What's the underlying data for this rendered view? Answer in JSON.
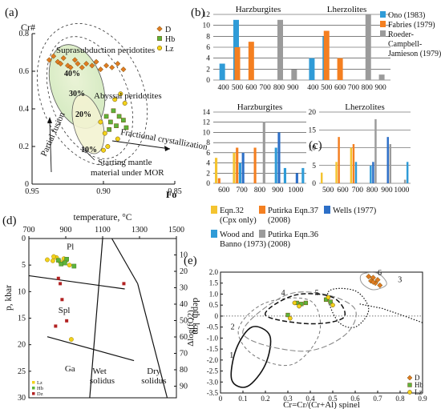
{
  "chart_data": [
    {
      "panel": "(a)",
      "type": "scatter",
      "ylabel": "Cr#",
      "xlabel": "Fo",
      "xlim": [
        0.95,
        0.85
      ],
      "ylim": [
        0.0,
        0.8
      ],
      "xticks": [
        "0.95",
        "0.90",
        "0.85"
      ],
      "yticks": [
        "0",
        "0.2",
        "0.4",
        "0.6",
        "0.8"
      ],
      "annotations": {
        "supra": "Suprasubduction peridotites",
        "abyssal": "Abyssal peridotites",
        "fractional": "Fractional crystallization",
        "partial": "Partial fusion",
        "starting1": "Starting mantle",
        "starting2": "material under MOR",
        "p40": "40%",
        "p30": "30%",
        "p20": "20%",
        "p10": "10%"
      },
      "legend": [
        {
          "label": "D",
          "color": "#e07b22",
          "marker": "diamond"
        },
        {
          "label": "Hb",
          "color": "#5db33b",
          "marker": "square"
        },
        {
          "label": "Lz",
          "color": "#f2d21a",
          "marker": "circle"
        }
      ],
      "series": [
        {
          "name": "D",
          "points": [
            [
              0.938,
              0.66
            ],
            [
              0.935,
              0.68
            ],
            [
              0.932,
              0.65
            ],
            [
              0.93,
              0.64
            ],
            [
              0.928,
              0.67
            ],
            [
              0.925,
              0.63
            ],
            [
              0.923,
              0.62
            ],
            [
              0.92,
              0.66
            ],
            [
              0.918,
              0.64
            ],
            [
              0.915,
              0.62
            ],
            [
              0.912,
              0.64
            ],
            [
              0.908,
              0.63
            ],
            [
              0.905,
              0.65
            ],
            [
              0.902,
              0.61
            ],
            [
              0.898,
              0.63
            ],
            [
              0.894,
              0.62
            ],
            [
              0.89,
              0.64
            ],
            [
              0.886,
              0.61
            ]
          ]
        },
        {
          "name": "Hb",
          "points": [
            [
              0.898,
              0.36
            ],
            [
              0.895,
              0.33
            ],
            [
              0.893,
              0.39
            ],
            [
              0.891,
              0.31
            ],
            [
              0.889,
              0.36
            ],
            [
              0.896,
              0.29
            ],
            [
              0.886,
              0.34
            ],
            [
              0.884,
              0.3
            ]
          ]
        },
        {
          "name": "Lz",
          "points": [
            [
              0.902,
              0.33
            ],
            [
              0.899,
              0.27
            ],
            [
              0.892,
              0.45
            ],
            [
              0.888,
              0.48
            ],
            [
              0.885,
              0.43
            ],
            [
              0.897,
              0.2
            ],
            [
              0.9,
              0.18
            ],
            [
              0.89,
              0.24
            ]
          ]
        }
      ]
    },
    {
      "panel": "(b)",
      "type": "bar",
      "subplots": [
        {
          "title": "Harzburgites",
          "categories": [
            "400",
            "500",
            "600",
            "700",
            "800",
            "900"
          ],
          "ylim": [
            0,
            12
          ],
          "yticks": [
            "0",
            "2",
            "4",
            "6",
            "8",
            "10",
            "12"
          ],
          "series": [
            {
              "name": "Ono (1983)",
              "color": "#2f9bd7",
              "values": [
                3,
                11,
                0,
                0,
                0,
                0
              ]
            },
            {
              "name": "Fabries (1979)",
              "color": "#f47f20",
              "values": [
                0,
                6,
                7,
                0,
                0,
                0
              ]
            },
            {
              "name": "Roeder-Campbell-Jamieson (1979)",
              "color": "#9b9b9b",
              "values": [
                0,
                0,
                0,
                0,
                11,
                2
              ]
            }
          ]
        },
        {
          "title": "Lherzolites",
          "categories": [
            "400",
            "500",
            "600",
            "700",
            "800",
            "900"
          ],
          "ylim": [
            0,
            12
          ],
          "yticks": [],
          "series": [
            {
              "name": "Ono (1983)",
              "color": "#2f9bd7",
              "values": [
                4,
                8,
                0,
                0,
                0,
                0
              ]
            },
            {
              "name": "Fabries (1979)",
              "color": "#f47f20",
              "values": [
                0,
                9,
                4,
                0,
                0,
                0
              ]
            },
            {
              "name": "Roeder-Campbell-Jamieson (1979)",
              "color": "#9b9b9b",
              "values": [
                0,
                0,
                0,
                0,
                12,
                1
              ]
            }
          ]
        }
      ],
      "legend": [
        {
          "text": "Ono (1983)",
          "color": "#2f9bd7"
        },
        {
          "text": "Fabries (1979)",
          "color": "#f47f20"
        },
        {
          "text": "Roeder-",
          "color": "#9b9b9b"
        },
        {
          "text": "Campbell-",
          "color": ""
        },
        {
          "text": "Jamieson (1979)",
          "color": ""
        }
      ]
    },
    {
      "panel": "(c)",
      "type": "bar",
      "subplots": [
        {
          "title": "Harzburgites",
          "categories": [
            "600",
            "700",
            "800",
            "900",
            "1000"
          ],
          "ylim": [
            0,
            14
          ],
          "yticks": [
            "0",
            "2",
            "4",
            "6",
            "8",
            "10",
            "12",
            "14"
          ],
          "groups": [
            [
              5,
              1,
              0,
              0,
              0,
              0
            ],
            [
              6,
              7,
              4,
              6,
              0,
              0
            ],
            [
              0,
              7,
              0,
              0,
              12,
              0
            ],
            [
              0,
              0,
              7,
              10,
              0,
              3
            ],
            [
              0,
              0,
              0,
              2,
              0,
              3
            ]
          ]
        },
        {
          "title": "Lherzolites",
          "categories": [
            "500",
            "600",
            "700",
            "800",
            "900",
            "1000"
          ],
          "ylim": [
            0,
            20
          ],
          "yticks": [
            "0",
            "5",
            "10",
            "15",
            "20"
          ],
          "groups": [
            [
              3,
              0,
              0,
              0,
              0,
              0
            ],
            [
              6,
              13,
              0,
              0,
              0,
              0
            ],
            [
              10,
              11,
              6,
              0,
              0,
              0
            ],
            [
              0,
              0,
              5,
              6,
              18,
              0
            ],
            [
              0,
              0,
              0,
              13,
              11,
              0
            ],
            [
              0,
              0,
              0,
              0,
              1,
              6
            ]
          ]
        }
      ],
      "series_colors": [
        "#f4c430",
        "#f47f20",
        "#2f9bd7",
        "#2d6fc7",
        "#9b9b9b",
        "#2f9bd7"
      ],
      "legend": [
        {
          "color": "#f4c430",
          "lines": [
            "Eqn.32",
            "(Cpx only)"
          ]
        },
        {
          "color": "#f47f20",
          "lines": [
            "Putirka Eqn.37",
            "(2008)"
          ]
        },
        {
          "color": "#2d6fc7",
          "lines": [
            "Wells (1977)"
          ]
        },
        {
          "color": "#2f9bd7",
          "lines": [
            "Wood and",
            "Banno (1973)"
          ]
        },
        {
          "color": "#9b9b9b",
          "lines": [
            "Putirka Eqn.36",
            "(2008)"
          ]
        }
      ]
    },
    {
      "panel": "(d)",
      "type": "scatter",
      "xlabel": "temperature, °C",
      "ylabel": "p, kbar",
      "y2label": "depth, km",
      "xlim": [
        700,
        1500
      ],
      "ylim": [
        30,
        0
      ],
      "xticks": [
        "700",
        "900",
        "1100",
        "1300",
        "1500"
      ],
      "yticks": [
        "0",
        "5",
        "10",
        "15",
        "20",
        "25",
        "30"
      ],
      "y2ticks": [
        "10",
        "20",
        "30",
        "40",
        "50",
        "60",
        "70",
        "80",
        "90"
      ],
      "fields": {
        "pl": "Pl",
        "spl": "Spl",
        "ga": "Ga",
        "wet1": "Wet",
        "wet2": "solidus",
        "dry1": "Dry",
        "dry2": "solidus"
      },
      "legend": [
        "Lz",
        "Hb",
        "Dz"
      ],
      "series": [
        {
          "name": "Lz",
          "color": "#f2d21a",
          "points": [
            [
              800,
              4
            ],
            [
              830,
              4.2
            ],
            [
              850,
              3.6
            ],
            [
              870,
              4.4
            ],
            [
              890,
              3.8
            ],
            [
              900,
              4.2
            ],
            [
              920,
              5
            ],
            [
              835,
              3.4
            ],
            [
              930,
              19
            ]
          ]
        },
        {
          "name": "Hb",
          "color": "#5db33b",
          "points": [
            [
              875,
              4.8
            ],
            [
              905,
              3.9
            ],
            [
              945,
              5.2
            ],
            [
              895,
              4.6
            ],
            [
              860,
              4.1
            ]
          ]
        },
        {
          "name": "Dz",
          "color": "#b22222",
          "points": [
            [
              860,
              7.5
            ],
            [
              870,
              8.5
            ],
            [
              880,
              11.5
            ],
            [
              905,
              15.5
            ],
            [
              845,
              16.5
            ],
            [
              1215,
              8.5
            ]
          ]
        }
      ]
    },
    {
      "panel": "(e)",
      "type": "scatter",
      "xlabel": "Cr=Cr/(Cr+Al) spinel",
      "ylabel": "Δlog(fO2)",
      "xlim": [
        0,
        0.9
      ],
      "ylim": [
        -3.5,
        2.0
      ],
      "xticks": [
        "0",
        "0.1",
        "0.2",
        "0.3",
        "0.4",
        "0.5",
        "0.6",
        "0.7",
        "0.8",
        "0.9"
      ],
      "yticks": [
        "2.0",
        "1.5",
        "1.0",
        "0.5",
        "0",
        "-0.5",
        "-1.0",
        "-1.5",
        "-2.0",
        "-2.5",
        "-3.0",
        "-3.5"
      ],
      "region_labels": [
        "1",
        "2",
        "3",
        "4",
        "5",
        "6"
      ],
      "legend": [
        {
          "label": "D",
          "color": "#e07b22"
        },
        {
          "label": "Hb",
          "color": "#5db33b"
        },
        {
          "label": "Lz",
          "color": "#f2d21a"
        }
      ],
      "series": [
        {
          "name": "D",
          "points": [
            [
              0.66,
              1.8
            ],
            [
              0.67,
              1.6
            ],
            [
              0.68,
              1.75
            ],
            [
              0.69,
              1.5
            ],
            [
              0.7,
              1.65
            ],
            [
              0.71,
              1.4
            ],
            [
              0.68,
              1.55
            ]
          ]
        },
        {
          "name": "Hb",
          "points": [
            [
              0.34,
              0.6
            ],
            [
              0.36,
              0.55
            ],
            [
              0.38,
              0.6
            ],
            [
              0.47,
              0.75
            ],
            [
              0.49,
              0.65
            ],
            [
              0.3,
              0.05
            ]
          ]
        },
        {
          "name": "Lz",
          "points": [
            [
              0.35,
              0.45
            ],
            [
              0.33,
              0.6
            ],
            [
              0.48,
              0.85
            ],
            [
              0.5,
              0.5
            ],
            [
              0.31,
              -0.1
            ]
          ]
        }
      ]
    }
  ]
}
